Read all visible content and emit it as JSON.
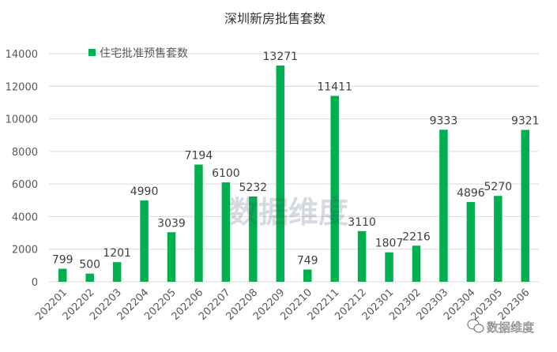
{
  "chart_data": {
    "type": "bar",
    "title": "深圳新房批售套数",
    "legend": {
      "label": "住宅批准预售套数",
      "position": "top-left"
    },
    "categories": [
      "202201",
      "202202",
      "202203",
      "202204",
      "202205",
      "202206",
      "202207",
      "202208",
      "202209",
      "202210",
      "202211",
      "202212",
      "202301",
      "202302",
      "202303",
      "202304",
      "202305",
      "202306"
    ],
    "series": [
      {
        "name": "住宅批准预售套数",
        "values": [
          799,
          500,
          1201,
          4990,
          3039,
          7194,
          6100,
          5232,
          13271,
          749,
          11411,
          3110,
          1807,
          2216,
          9333,
          4896,
          5270,
          9321
        ],
        "color": "#00b050"
      }
    ],
    "data_labels": [
      "799",
      "500",
      "1201",
      "4990",
      "3039",
      "7194",
      "6100",
      "5232",
      "13271",
      "749",
      "11411",
      "3110",
      "1807",
      "2216",
      "9333",
      "4896",
      "5270",
      "9321"
    ],
    "yticks": [
      "0",
      "2000",
      "4000",
      "6000",
      "8000",
      "10000",
      "12000",
      "14000"
    ],
    "ylim": [
      0,
      14000
    ],
    "grid": true
  },
  "watermark": {
    "center": "数据维度",
    "corner": "数据维度"
  },
  "colors": {
    "bar": "#00b050",
    "grid": "#d9d9d9"
  }
}
